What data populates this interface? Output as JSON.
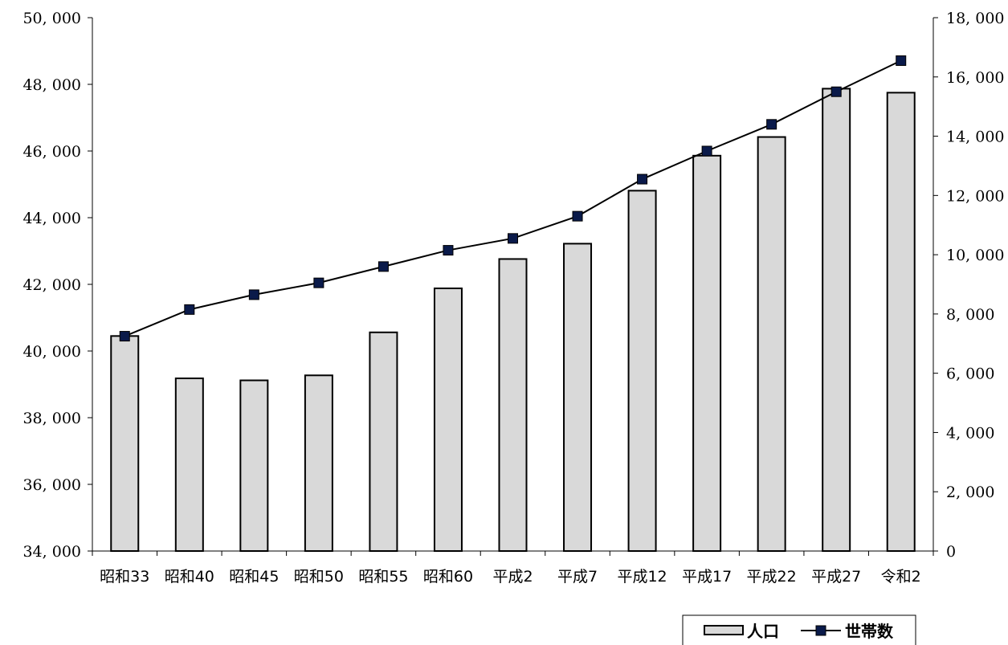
{
  "chart_data": {
    "type": "bar",
    "title": "",
    "categories": [
      "昭和33",
      "昭和40",
      "昭和45",
      "昭和50",
      "昭和55",
      "昭和60",
      "平成2",
      "平成7",
      "平成12",
      "平成17",
      "平成22",
      "平成27",
      "令和2"
    ],
    "series": [
      {
        "name": "人口",
        "type": "bar",
        "axis": "left",
        "color": "#d9d9d9",
        "values": [
          40450,
          39180,
          39120,
          39270,
          40560,
          41880,
          42760,
          43220,
          44810,
          45860,
          46420,
          47870,
          47750
        ]
      },
      {
        "name": "世帯数",
        "type": "line",
        "axis": "right",
        "color": "#000000",
        "marker_color": "#0a1a4a",
        "values": [
          7250,
          8150,
          8650,
          9050,
          9600,
          10150,
          10550,
          11300,
          12550,
          13500,
          14400,
          15500,
          16550
        ]
      }
    ],
    "y_left": {
      "min": 34000,
      "max": 50000,
      "ticks": [
        "34, 000",
        "36, 000",
        "38, 000",
        "40, 000",
        "42, 000",
        "44, 000",
        "46, 000",
        "48, 000",
        "50, 000"
      ]
    },
    "y_right": {
      "min": 0,
      "max": 18000,
      "ticks": [
        "0",
        "2, 000",
        "4, 000",
        "6, 000",
        "8, 000",
        "10, 000",
        "12, 000",
        "14, 000",
        "16, 000",
        "18, 000"
      ]
    },
    "xlabel": "",
    "ylabel": "",
    "grid": false,
    "legend": {
      "position": "bottom-right",
      "items": [
        "人口",
        "世帯数"
      ]
    }
  }
}
